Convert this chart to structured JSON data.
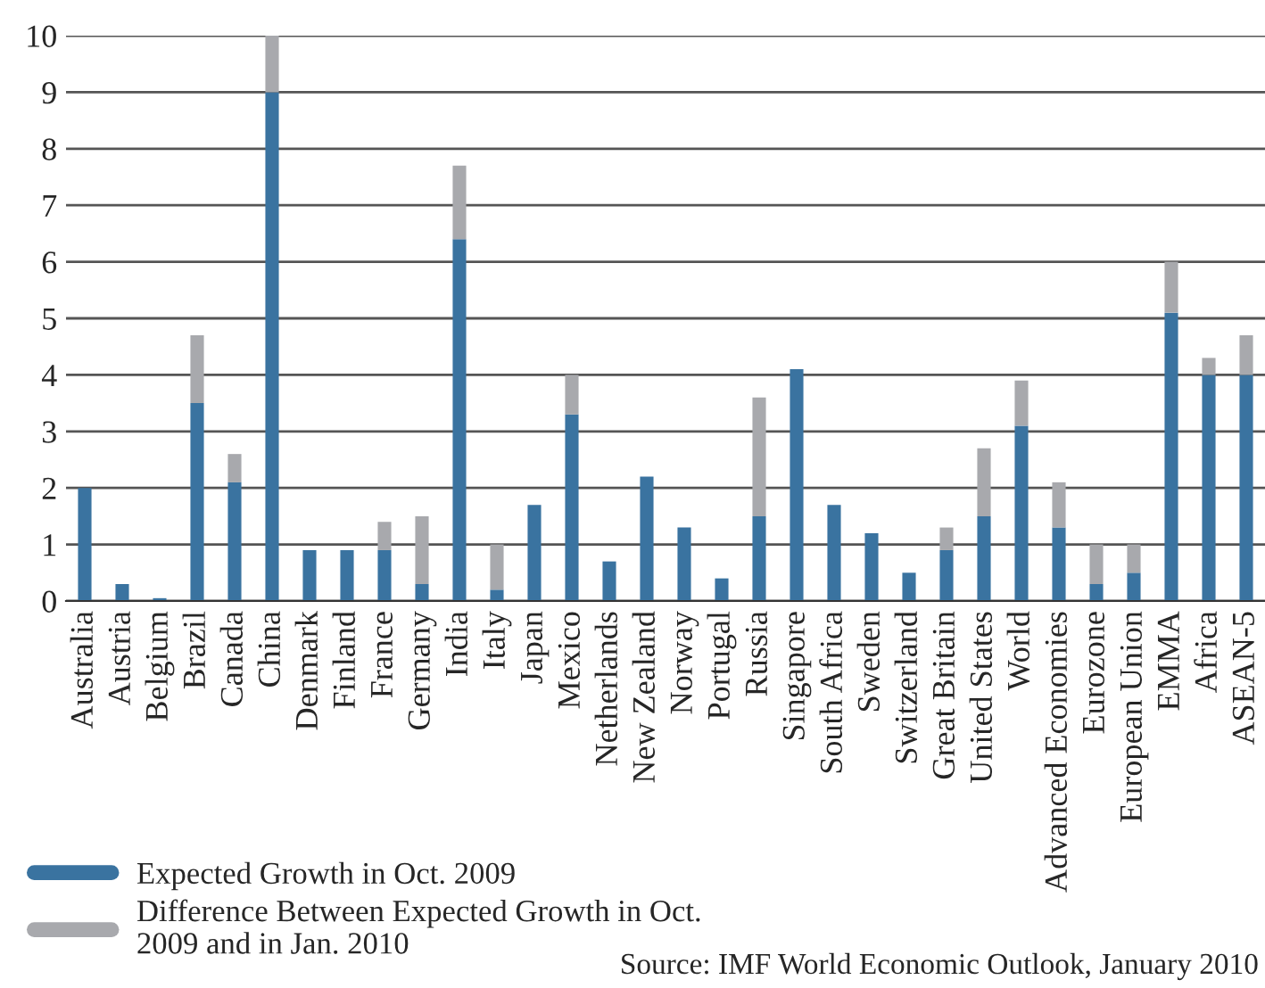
{
  "chart_data": {
    "type": "bar",
    "stacked": true,
    "categories": [
      "Australia",
      "Austria",
      "Belgium",
      "Brazil",
      "Canada",
      "China",
      "Denmark",
      "Finland",
      "France",
      "Germany",
      "India",
      "Italy",
      "Japan",
      "Mexico",
      "Netherlands",
      "New Zealand",
      "Norway",
      "Portugal",
      "Russia",
      "Singapore",
      "South Africa",
      "Sweden",
      "Switzerland",
      "Great Britain",
      "United States",
      "World",
      "Advanced Economies",
      "Eurozone",
      "European Union",
      "EMMA",
      "Africa",
      "ASEAN-5"
    ],
    "series": [
      {
        "name": "Expected Growth in Oct. 2009",
        "color": "#3a73a0",
        "values": [
          2.0,
          0.3,
          0.05,
          3.5,
          2.1,
          9.0,
          0.9,
          0.9,
          0.9,
          0.3,
          6.4,
          0.2,
          1.7,
          3.3,
          0.7,
          2.2,
          1.3,
          0.4,
          1.5,
          4.1,
          1.7,
          1.2,
          0.5,
          0.9,
          1.5,
          3.1,
          1.3,
          0.3,
          0.5,
          5.1,
          4.0,
          4.0
        ]
      },
      {
        "name": "Difference Between Expected Growth in Oct. 2009 and in Jan. 2010",
        "color": "#a8a9ad",
        "values": [
          0,
          0,
          0,
          1.2,
          0.5,
          1.0,
          0,
          0,
          0.5,
          1.2,
          1.3,
          0.8,
          0,
          0.7,
          0,
          0,
          0,
          0,
          2.1,
          0,
          0,
          0,
          0,
          0.4,
          1.2,
          0.8,
          0.8,
          0.7,
          0.5,
          0.9,
          0.3,
          0.7
        ]
      }
    ],
    "ylim": [
      0,
      10
    ],
    "yticks": [
      0,
      1,
      2,
      3,
      4,
      5,
      6,
      7,
      8,
      9,
      10
    ],
    "grid": "y",
    "legend": "bottom left",
    "annotations": [
      "Source: IMF World Economic Outlook, January 2010"
    ]
  }
}
